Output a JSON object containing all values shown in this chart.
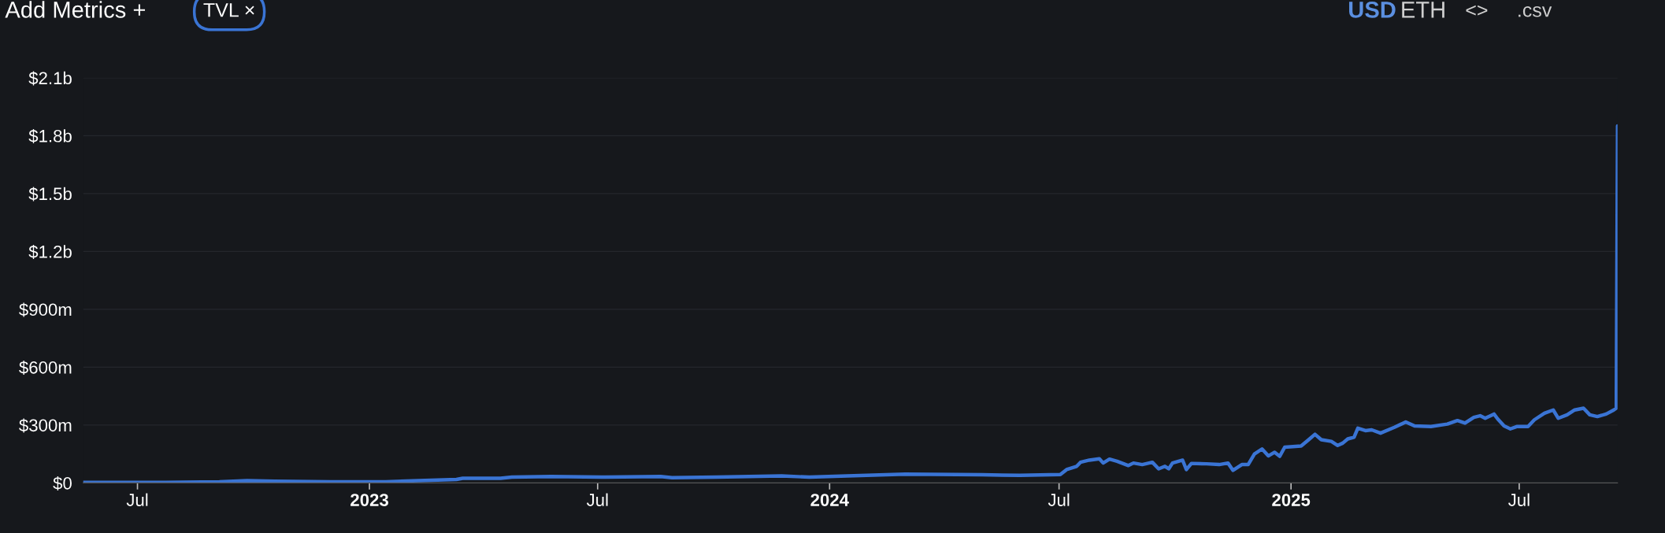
{
  "chart_data": {
    "type": "line",
    "annotations": [
      "Add Metrics +",
      "TVL ×",
      "USD",
      "ETH",
      "<>",
      ".csv"
    ],
    "x": [
      "2022-05-19",
      "2022-07-23",
      "2022-09-04",
      "2022-09-26",
      "2022-10-18",
      "2022-12-01",
      "2023-01-14",
      "2023-02-09",
      "2023-03-11",
      "2023-03-16",
      "2023-04-15",
      "2023-04-24",
      "2023-05-25",
      "2023-07-07",
      "2023-08-20",
      "2023-08-29",
      "2023-10-03",
      "2023-11-24",
      "2023-12-16",
      "2024-01-15",
      "2024-03-01",
      "2024-05-01",
      "2024-05-31",
      "2024-07-02",
      "2024-07-07",
      "2024-07-15",
      "2024-07-18",
      "2024-07-25",
      "2024-08-02",
      "2024-08-05",
      "2024-08-10",
      "2024-08-16",
      "2024-08-25",
      "2024-08-29",
      "2024-09-05",
      "2024-09-13",
      "2024-09-18",
      "2024-09-23",
      "2024-09-26",
      "2024-09-29",
      "2024-10-07",
      "2024-10-10",
      "2024-10-14",
      "2024-10-26",
      "2024-11-05",
      "2024-11-12",
      "2024-11-16",
      "2024-11-23",
      "2024-11-28",
      "2024-12-03",
      "2024-12-09",
      "2024-12-14",
      "2024-12-19",
      "2024-12-23",
      "2024-12-27",
      "2025-01-09",
      "2025-01-15",
      "2025-01-20",
      "2025-01-25",
      "2025-02-02",
      "2025-02-07",
      "2025-02-11",
      "2025-02-15",
      "2025-02-20",
      "2025-02-23",
      "2025-03-01",
      "2025-03-06",
      "2025-03-13",
      "2025-03-24",
      "2025-04-02",
      "2025-04-09",
      "2025-04-22",
      "2025-05-05",
      "2025-05-13",
      "2025-05-19",
      "2025-05-26",
      "2025-05-31",
      "2025-06-04",
      "2025-06-11",
      "2025-06-14",
      "2025-06-19",
      "2025-06-24",
      "2025-06-29",
      "2025-07-08",
      "2025-07-13",
      "2025-07-21",
      "2025-07-28",
      "2025-08-01",
      "2025-08-08",
      "2025-08-14",
      "2025-08-21",
      "2025-08-26",
      "2025-09-01",
      "2025-09-08",
      "2025-09-14",
      "2025-09-16",
      "2025-09-17"
    ],
    "series": [
      {
        "name": null,
        "color": "#3a74d4",
        "values": [
          3000000,
          3000000,
          6000000,
          12000000,
          9000000,
          6000000,
          6000000,
          12000000,
          18000000,
          24000000,
          24000000,
          30000000,
          33000000,
          30000000,
          33000000,
          27000000,
          30000000,
          36000000,
          30000000,
          36000000,
          45000000,
          42000000,
          39000000,
          43000000,
          69000000,
          86000000,
          107000000,
          118000000,
          125000000,
          103000000,
          123000000,
          112000000,
          90000000,
          103000000,
          95000000,
          107000000,
          73000000,
          86000000,
          73000000,
          103000000,
          118000000,
          69000000,
          101000000,
          99000000,
          95000000,
          103000000,
          65000000,
          95000000,
          95000000,
          150000000,
          176000000,
          140000000,
          159000000,
          138000000,
          185000000,
          191000000,
          224000000,
          252000000,
          224000000,
          215000000,
          194000000,
          206000000,
          228000000,
          237000000,
          284000000,
          271000000,
          275000000,
          258000000,
          288000000,
          316000000,
          295000000,
          292000000,
          305000000,
          323000000,
          310000000,
          340000000,
          348000000,
          335000000,
          357000000,
          331000000,
          295000000,
          280000000,
          292000000,
          292000000,
          327000000,
          361000000,
          378000000,
          335000000,
          353000000,
          378000000,
          387000000,
          353000000,
          344000000,
          357000000,
          378000000,
          387000000,
          1850000000
        ]
      }
    ],
    "xlim": [
      "2022-05-19",
      "2025-09-17"
    ],
    "xticks": [
      {
        "value": "2022-07-01",
        "label": "Jul"
      },
      {
        "value": "2023-01-01",
        "label": "2023"
      },
      {
        "value": "2023-07-01",
        "label": "Jul"
      },
      {
        "value": "2024-01-01",
        "label": "2024"
      },
      {
        "value": "2024-07-01",
        "label": "Jul"
      },
      {
        "value": "2025-01-01",
        "label": "2025"
      },
      {
        "value": "2025-07-01",
        "label": "Jul"
      }
    ],
    "ylim": [
      0,
      2100000000
    ],
    "yticks": [
      {
        "value": 0,
        "label": "$0"
      },
      {
        "value": 300000000,
        "label": "$300m"
      },
      {
        "value": 600000000,
        "label": "$600m"
      },
      {
        "value": 900000000,
        "label": "$900m"
      },
      {
        "value": 1200000000,
        "label": "$1.2b"
      },
      {
        "value": 1500000000,
        "label": "$1.5b"
      },
      {
        "value": 1800000000,
        "label": "$1.8b"
      },
      {
        "value": 2100000000,
        "label": "$2.1b"
      }
    ],
    "grid": "y",
    "marker": "none",
    "line_style": "solid"
  }
}
